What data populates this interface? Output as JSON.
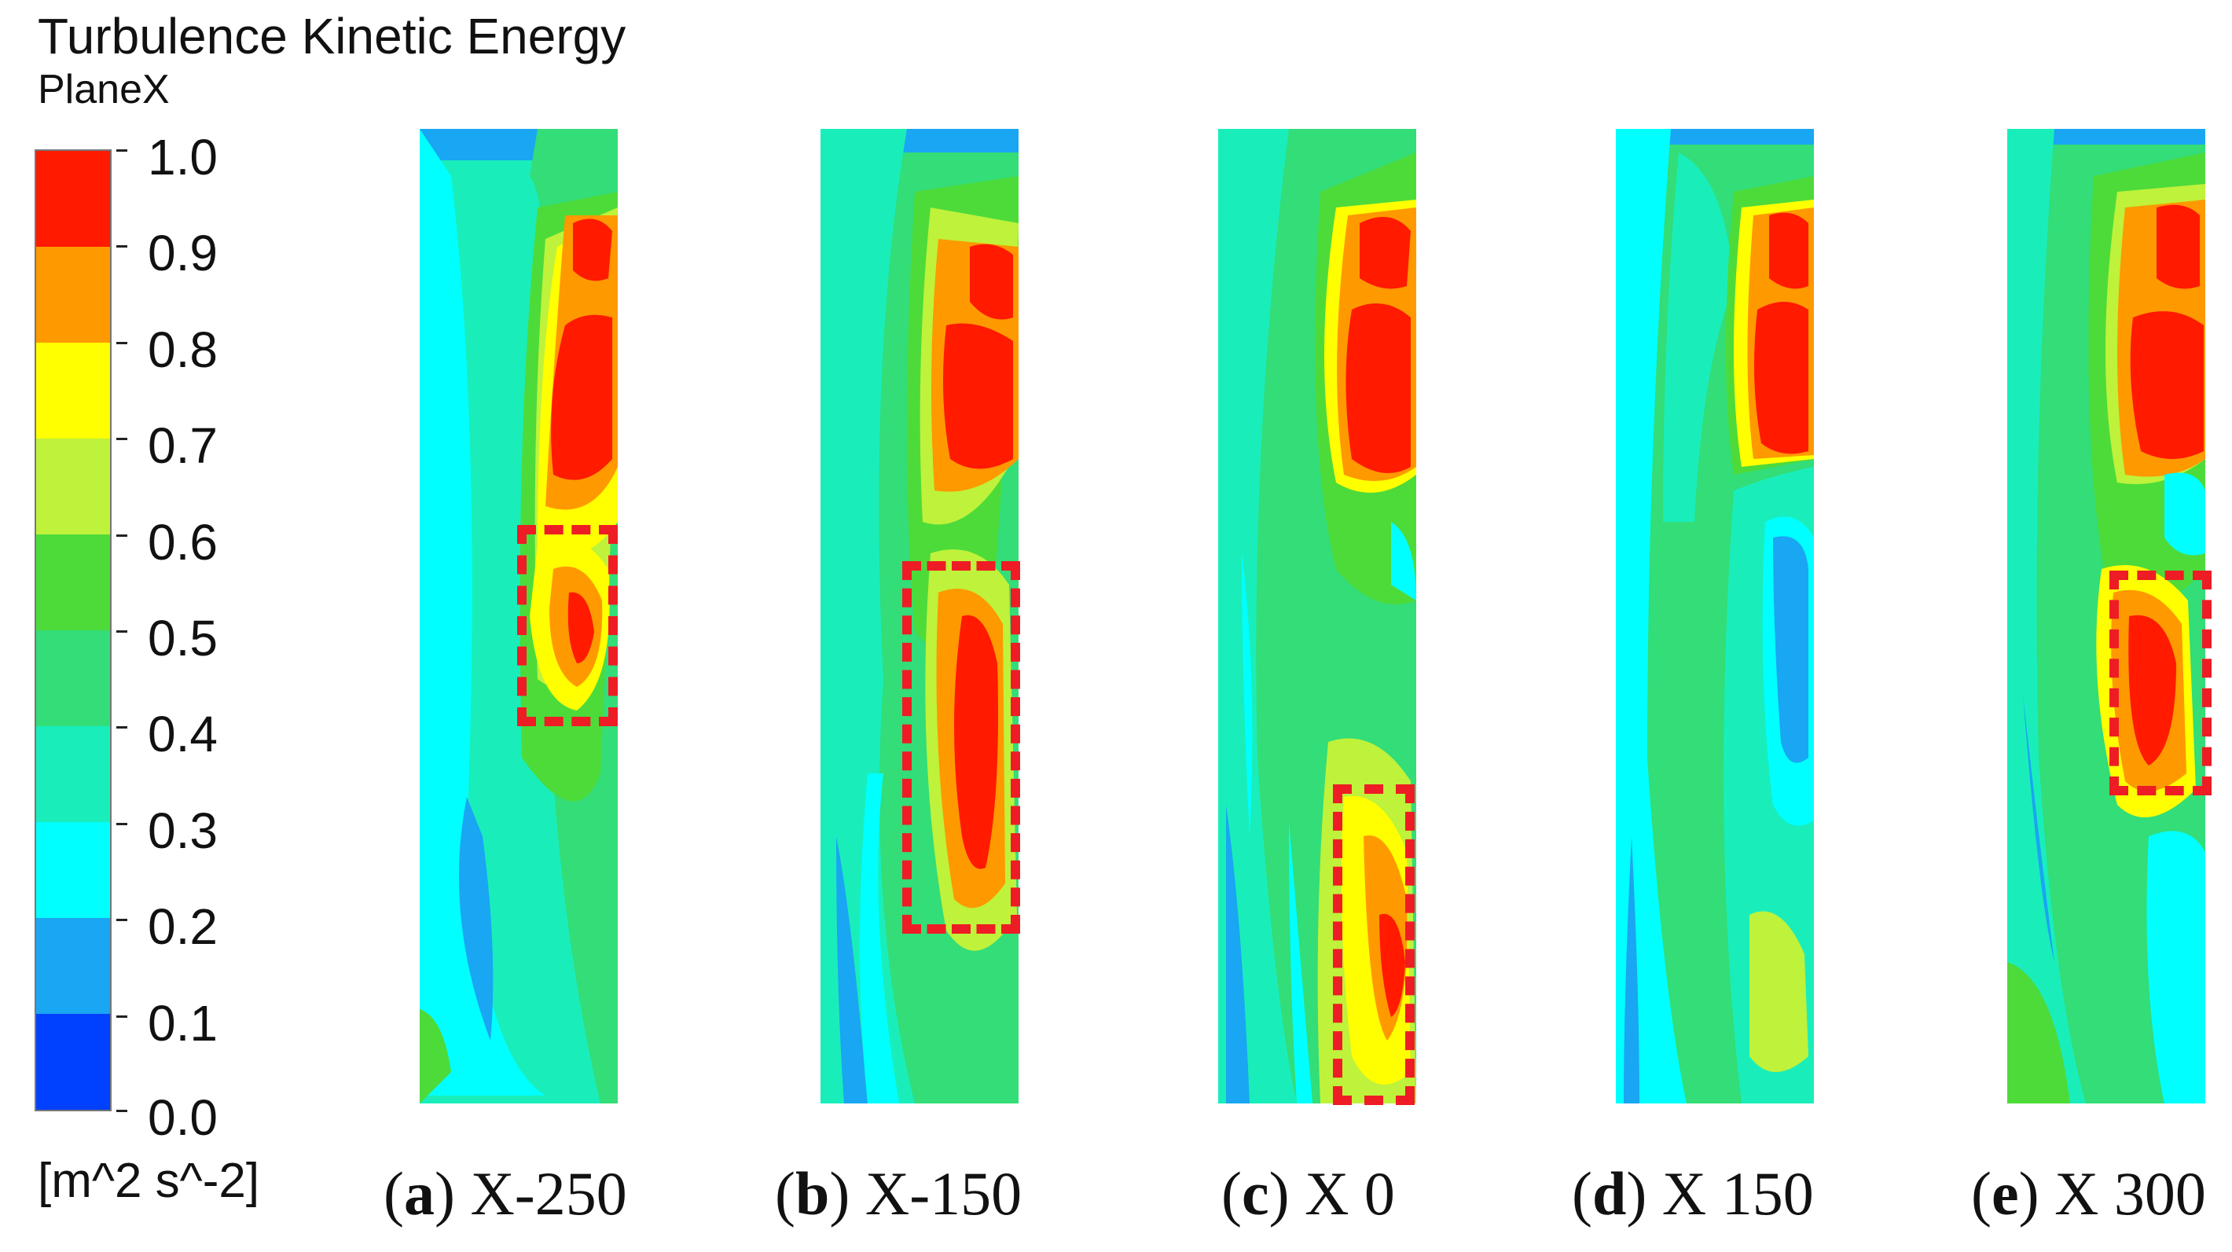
{
  "title": "Turbulence Kinetic Energy",
  "subtitle": "PlaneX",
  "unit": "[m^2 s^-2]",
  "colorbar": {
    "labels": [
      "1.0",
      "0.9",
      "0.8",
      "0.7",
      "0.6",
      "0.5",
      "0.4",
      "0.3",
      "0.2",
      "0.1",
      "0.0"
    ],
    "colors": [
      "#ff1a00",
      "#ff9900",
      "#ffff00",
      "#bff23a",
      "#4ddb3a",
      "#33dd77",
      "#19eebb",
      "#00ffff",
      "#19a6f2",
      "#0040ff"
    ]
  },
  "panels": [
    {
      "letter": "a",
      "label": "X-250",
      "open": "(",
      "close": ")"
    },
    {
      "letter": "b",
      "label": "X-150",
      "open": "(",
      "close": ")"
    },
    {
      "letter": "c",
      "label": "X 0",
      "open": "(",
      "close": ")"
    },
    {
      "letter": "d",
      "label": "X 150",
      "open": "(",
      "close": ")"
    },
    {
      "letter": "e",
      "label": "X 300",
      "open": "(",
      "close": ")"
    }
  ]
}
